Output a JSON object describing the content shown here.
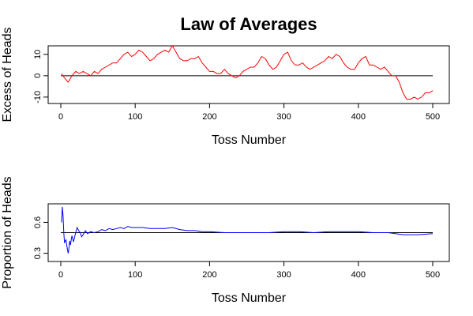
{
  "chart_data": [
    {
      "type": "line",
      "title": "Law of Averages",
      "xlabel": "Toss Number",
      "ylabel": "Excess of Heads",
      "xlim": [
        0,
        500
      ],
      "ylim": [
        -13,
        14
      ],
      "x_ticks": [
        0,
        100,
        200,
        300,
        400,
        500
      ],
      "y_ticks": [
        -10,
        0,
        10
      ],
      "reference_line": 0,
      "series": [
        {
          "color": "#ff0000",
          "x": [
            1,
            5,
            10,
            15,
            20,
            25,
            30,
            35,
            40,
            45,
            50,
            55,
            60,
            65,
            70,
            75,
            80,
            85,
            90,
            95,
            100,
            105,
            110,
            115,
            120,
            125,
            130,
            135,
            140,
            145,
            150,
            155,
            160,
            165,
            170,
            175,
            180,
            185,
            190,
            195,
            200,
            205,
            210,
            215,
            220,
            225,
            230,
            235,
            240,
            245,
            250,
            255,
            260,
            265,
            270,
            275,
            280,
            285,
            290,
            295,
            300,
            305,
            310,
            315,
            320,
            325,
            330,
            335,
            340,
            345,
            350,
            355,
            360,
            365,
            370,
            375,
            380,
            385,
            390,
            395,
            400,
            405,
            410,
            415,
            420,
            425,
            430,
            435,
            440,
            445,
            450,
            455,
            460,
            465,
            470,
            475,
            480,
            485,
            490,
            495,
            500
          ],
          "values": [
            1,
            -1,
            -3,
            0,
            2,
            1,
            2,
            1,
            0,
            2,
            1,
            3,
            4,
            5,
            6,
            6,
            8,
            10,
            11,
            9,
            10,
            12,
            11,
            9,
            7,
            8,
            10,
            11,
            12,
            11,
            14,
            11,
            8,
            7,
            7,
            8,
            8,
            9,
            6,
            4,
            2,
            2,
            1,
            1,
            3,
            1,
            0,
            -1,
            0,
            2,
            3,
            4,
            4,
            6,
            9,
            8,
            5,
            3,
            4,
            7,
            10,
            11,
            7,
            5,
            5,
            6,
            4,
            3,
            4,
            5,
            6,
            7,
            9,
            8,
            10,
            9,
            6,
            4,
            3,
            3,
            6,
            8,
            9,
            5,
            5,
            4,
            3,
            4,
            2,
            0,
            0,
            -3,
            -8,
            -11,
            -11,
            -10,
            -11,
            -10,
            -8,
            -8,
            -7
          ]
        }
      ]
    },
    {
      "type": "line",
      "xlabel": "Toss Number",
      "ylabel": "Proportion of Heads",
      "xlim": [
        0,
        500
      ],
      "ylim": [
        0.22,
        0.78
      ],
      "x_ticks": [
        0,
        100,
        200,
        300,
        400,
        500
      ],
      "y_ticks": [
        0.3,
        0.6
      ],
      "y_tick_labels": [
        "0.3",
        "0.6"
      ],
      "reference_line": 0.5,
      "series": [
        {
          "color": "#0000ff",
          "x": [
            1,
            2,
            3,
            4,
            5,
            6,
            7,
            8,
            9,
            10,
            11,
            12,
            13,
            14,
            15,
            16,
            17,
            18,
            19,
            20,
            22,
            24,
            26,
            28,
            30,
            33,
            36,
            40,
            45,
            50,
            55,
            60,
            65,
            70,
            75,
            80,
            85,
            90,
            95,
            100,
            110,
            120,
            130,
            140,
            150,
            160,
            170,
            180,
            190,
            200,
            220,
            240,
            260,
            280,
            300,
            320,
            340,
            360,
            380,
            400,
            420,
            440,
            460,
            480,
            500
          ],
          "values": [
            0.6,
            0.75,
            0.67,
            0.5,
            0.4,
            0.42,
            0.43,
            0.38,
            0.33,
            0.3,
            0.36,
            0.42,
            0.38,
            0.43,
            0.47,
            0.44,
            0.41,
            0.44,
            0.47,
            0.5,
            0.55,
            0.52,
            0.5,
            0.46,
            0.48,
            0.52,
            0.49,
            0.51,
            0.5,
            0.51,
            0.53,
            0.52,
            0.54,
            0.53,
            0.54,
            0.55,
            0.54,
            0.56,
            0.55,
            0.55,
            0.55,
            0.54,
            0.54,
            0.54,
            0.55,
            0.53,
            0.52,
            0.52,
            0.51,
            0.51,
            0.5,
            0.5,
            0.5,
            0.5,
            0.51,
            0.51,
            0.5,
            0.51,
            0.51,
            0.51,
            0.5,
            0.5,
            0.48,
            0.48,
            0.49
          ]
        }
      ]
    }
  ]
}
